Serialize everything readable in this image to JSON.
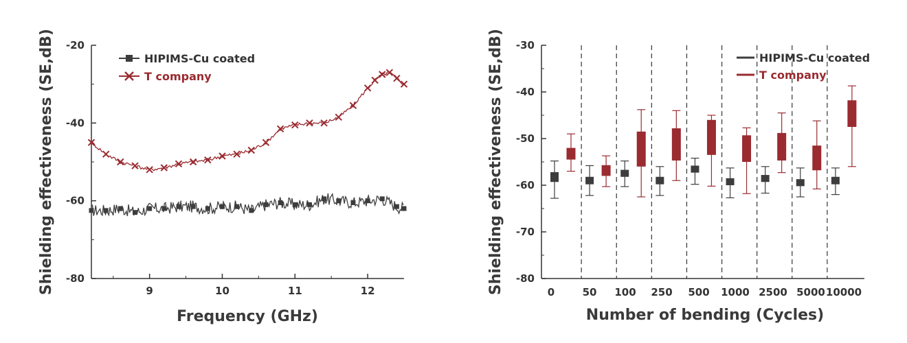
{
  "chart_data": [
    {
      "type": "line",
      "xlabel": "Frequency (GHz)",
      "ylabel": "Shielding effectiveness (SE,dB)",
      "xlim": [
        8.2,
        12.5
      ],
      "ylim": [
        -80,
        -20
      ],
      "xticks": [
        9,
        10,
        11,
        12
      ],
      "yticks": [
        -20,
        -40,
        -60,
        -80
      ],
      "legend_position": "top-left",
      "grid": false,
      "series": [
        {
          "name": "HIPIMS-Cu coated",
          "color": "#3d3d3d",
          "marker": "square",
          "x": [
            8.2,
            8.4,
            8.6,
            8.8,
            9.0,
            9.2,
            9.4,
            9.6,
            9.8,
            10.0,
            10.2,
            10.4,
            10.6,
            10.8,
            11.0,
            11.2,
            11.4,
            11.6,
            11.8,
            12.0,
            12.2,
            12.4,
            12.5
          ],
          "y": [
            -62.5,
            -62.5,
            -62,
            -63,
            -62,
            -62,
            -61.5,
            -61.5,
            -62,
            -61.5,
            -61.5,
            -62.5,
            -61,
            -60.5,
            -61,
            -61,
            -59.5,
            -60,
            -60.5,
            -60,
            -59.5,
            -61.5,
            -62
          ]
        },
        {
          "name": "T company",
          "color": "#9a2b30",
          "marker": "x",
          "x": [
            8.2,
            8.4,
            8.6,
            8.8,
            9.0,
            9.2,
            9.4,
            9.6,
            9.8,
            10.0,
            10.2,
            10.4,
            10.6,
            10.8,
            11.0,
            11.2,
            11.4,
            11.6,
            11.8,
            12.0,
            12.1,
            12.2,
            12.3,
            12.4,
            12.5
          ],
          "y": [
            -45,
            -48,
            -50,
            -51,
            -52,
            -51.5,
            -50.5,
            -50,
            -49.5,
            -48.5,
            -48,
            -47,
            -45,
            -41.5,
            -40.5,
            -40,
            -40,
            -38.5,
            -35.5,
            -31,
            -29,
            -27.5,
            -27,
            -28.5,
            -30
          ]
        }
      ]
    },
    {
      "type": "box",
      "xlabel": "Number of bending (Cycles)",
      "ylabel": "Shielding effectiveness (SE,dB)",
      "categories": [
        "0",
        "50",
        "100",
        "250",
        "500",
        "1000",
        "2500",
        "5000",
        "10000"
      ],
      "ylim": [
        -80,
        -30
      ],
      "yticks": [
        -30,
        -40,
        -50,
        -60,
        -70,
        -80
      ],
      "legend_position": "top-right",
      "grid": false,
      "separators": "dashed vertical lines between categories",
      "series": [
        {
          "name": "HIPIMS-Cu coated",
          "color": "#3d3d3d",
          "boxes": [
            {
              "min": -62.8,
              "q1": -59.3,
              "q3": -57.2,
              "max": -54.8
            },
            {
              "min": -62.2,
              "q1": -59.8,
              "q3": -58.2,
              "max": -55.8
            },
            {
              "min": -60.3,
              "q1": -58.2,
              "q3": -56.7,
              "max": -54.8
            },
            {
              "min": -62.2,
              "q1": -59.8,
              "q3": -58.2,
              "max": -56.0
            },
            {
              "min": -59.8,
              "q1": -57.3,
              "q3": -55.8,
              "max": -54.2
            },
            {
              "min": -62.7,
              "q1": -60.0,
              "q3": -58.5,
              "max": -56.3
            },
            {
              "min": -61.7,
              "q1": -59.3,
              "q3": -57.8,
              "max": -56.0
            },
            {
              "min": -62.5,
              "q1": -60.2,
              "q3": -58.7,
              "max": -56.3
            },
            {
              "min": -62.0,
              "q1": -59.8,
              "q3": -58.2,
              "max": -56.3
            }
          ]
        },
        {
          "name": "T company",
          "color": "#9a2b30",
          "boxes": [
            {
              "min": -57.0,
              "q1": -54.5,
              "q3": -52.0,
              "max": -49.0
            },
            {
              "min": -60.3,
              "q1": -58.0,
              "q3": -55.7,
              "max": -53.7
            },
            {
              "min": -62.5,
              "q1": -56.0,
              "q3": -48.5,
              "max": -43.8
            },
            {
              "min": -59.0,
              "q1": -54.7,
              "q3": -47.8,
              "max": -44.0
            },
            {
              "min": -60.2,
              "q1": -53.5,
              "q3": -46.0,
              "max": -45.0
            },
            {
              "min": -61.8,
              "q1": -55.0,
              "q3": -49.3,
              "max": -47.7
            },
            {
              "min": -57.3,
              "q1": -54.7,
              "q3": -48.8,
              "max": -44.5
            },
            {
              "min": -60.8,
              "q1": -56.8,
              "q3": -51.5,
              "max": -46.2
            },
            {
              "min": -56.0,
              "q1": -47.5,
              "q3": -41.8,
              "max": -38.7
            }
          ]
        }
      ]
    }
  ]
}
